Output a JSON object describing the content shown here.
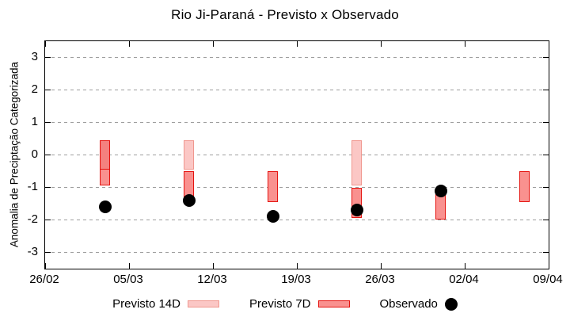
{
  "chart_data": {
    "type": "bar",
    "title": "Rio Ji-Paraná - Previsto x Observado",
    "ylabel": "Anomalia de Preciptação Categorizada",
    "ylim": [
      -3.5,
      3.5
    ],
    "yticks": [
      3,
      2,
      1,
      0,
      -1,
      -2,
      -3
    ],
    "grid": "dashed-horizontal",
    "x_axis_days_range": [
      0,
      42
    ],
    "xticks": [
      {
        "day": 0,
        "label": "26/02"
      },
      {
        "day": 7,
        "label": "05/03"
      },
      {
        "day": 14,
        "label": "12/03"
      },
      {
        "day": 21,
        "label": "19/03"
      },
      {
        "day": 28,
        "label": "26/03"
      },
      {
        "day": 35,
        "label": "02/04"
      },
      {
        "day": 42,
        "label": "09/04"
      }
    ],
    "legend": [
      {
        "label": "Previsto 14D",
        "marker": "box-light"
      },
      {
        "label": "Previsto 7D",
        "marker": "box-dark"
      },
      {
        "label": "Observado",
        "marker": "dot-black"
      }
    ],
    "legend_position": "bottom-center",
    "colors": {
      "fill_14d": "#fbc7c5",
      "border_14d": "#f0978f",
      "fill_7d": "#f9918f",
      "border_7d": "#e51410",
      "fill_overlap": "#f4817f",
      "observed": "#000000",
      "grid": "#9e9e9e"
    },
    "groups": [
      {
        "date": "03/03",
        "day": 5,
        "previsto_14d": {
          "from": 0.45,
          "to": -0.45
        },
        "previsto_7d": {
          "from": 0.45,
          "to": -0.95
        },
        "observado": -1.6
      },
      {
        "date": "10/03",
        "day": 12,
        "previsto_14d": {
          "from": 0.45,
          "to": -0.45
        },
        "previsto_7d": {
          "from": -0.5,
          "to": -1.3
        },
        "observado": -1.4
      },
      {
        "date": "17/03",
        "day": 19,
        "previsto_14d": null,
        "previsto_7d": {
          "from": -0.5,
          "to": -1.45
        },
        "observado": -1.9
      },
      {
        "date": "24/03",
        "day": 26,
        "previsto_14d": {
          "from": 0.45,
          "to": -0.95
        },
        "previsto_7d": {
          "from": -1.0,
          "to": -1.95
        },
        "observado": -1.7
      },
      {
        "date": "31/03",
        "day": 33,
        "previsto_14d": null,
        "previsto_7d": {
          "from": -1.15,
          "to": -2.0
        },
        "observado": -1.1
      },
      {
        "date": "07/04",
        "day": 40,
        "previsto_14d": null,
        "previsto_7d": {
          "from": -0.5,
          "to": -1.45
        },
        "observado": null
      }
    ]
  }
}
